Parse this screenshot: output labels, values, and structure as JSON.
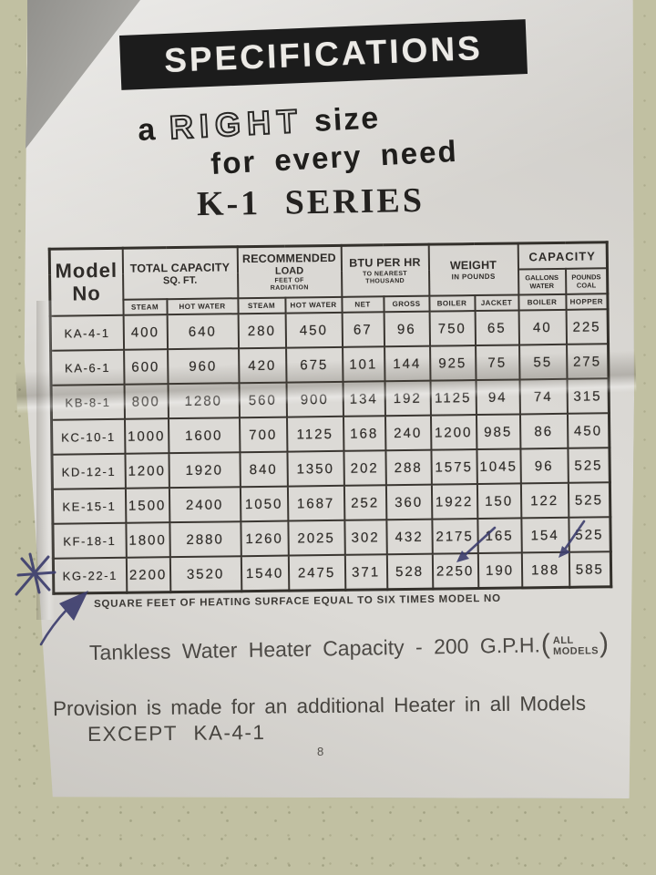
{
  "colors": {
    "background": "#c1c0a2",
    "paper": "#dcdad6",
    "banner_bg": "#1c1c1c",
    "banner_text": "#eceae6",
    "ink": "#2f2c29",
    "pen": "#3d3e6e"
  },
  "header": {
    "banner": "SPECIFICATIONS",
    "tagline_a": "a",
    "tagline_right": "RIGHT",
    "tagline_size": "size",
    "tagline_line2": "for every need",
    "series": "K-1 SERIES"
  },
  "table": {
    "model_col": {
      "line1": "Model",
      "line2": "No"
    },
    "groups": [
      {
        "title": "TOTAL CAPACITY",
        "title2": "SQ. FT.",
        "sub": ""
      },
      {
        "title": "RECOMMENDED",
        "title2": "LOAD",
        "sub": "FEET OF RADIATION"
      },
      {
        "title": "BTU PER HR",
        "title2": "",
        "sub": "TO NEAREST THOUSAND"
      },
      {
        "title": "WEIGHT",
        "title2": "",
        "sub": "IN POUNDS"
      },
      {
        "title": "CAPACITY",
        "subgroups": [
          "GALLONS WATER",
          "POUNDS COAL"
        ]
      }
    ],
    "subheaders": [
      "STEAM",
      "HOT WATER",
      "STEAM",
      "HOT WATER",
      "NET",
      "GROSS",
      "BOILER",
      "JACKET",
      "BOILER",
      "HOPPER"
    ],
    "rows": [
      {
        "model": "KA-4-1",
        "values": [
          "400",
          "640",
          "280",
          "450",
          "67",
          "96",
          "750",
          "65",
          "40",
          "225"
        ]
      },
      {
        "model": "KA-6-1",
        "values": [
          "600",
          "960",
          "420",
          "675",
          "101",
          "144",
          "925",
          "75",
          "55",
          "275"
        ]
      },
      {
        "model": "KB-8-1",
        "values": [
          "800",
          "1280",
          "560",
          "900",
          "134",
          "192",
          "1125",
          "94",
          "74",
          "315"
        ]
      },
      {
        "model": "KC-10-1",
        "values": [
          "1000",
          "1600",
          "700",
          "1125",
          "168",
          "240",
          "1200",
          "985",
          "86",
          "450"
        ]
      },
      {
        "model": "KD-12-1",
        "values": [
          "1200",
          "1920",
          "840",
          "1350",
          "202",
          "288",
          "1575",
          "1045",
          "96",
          "525"
        ]
      },
      {
        "model": "KE-15-1",
        "values": [
          "1500",
          "2400",
          "1050",
          "1687",
          "252",
          "360",
          "1922",
          "150",
          "122",
          "525"
        ]
      },
      {
        "model": "KF-18-1",
        "values": [
          "1800",
          "2880",
          "1260",
          "2025",
          "302",
          "432",
          "2175",
          "165",
          "154",
          "525"
        ]
      },
      {
        "model": "KG-22-1",
        "values": [
          "2200",
          "3520",
          "1540",
          "2475",
          "371",
          "528",
          "2250",
          "190",
          "188",
          "585"
        ]
      }
    ]
  },
  "notes": {
    "heating_surface": "SQUARE FEET OF HEATING SURFACE EQUAL TO SIX TIMES MODEL NO",
    "tankless_prefix": "Tankless Water Heater Capacity - 200 G.P.H.",
    "tankless_paren_open": "(",
    "tankless_stack_top": "ALL",
    "tankless_stack_bottom": "MODELS",
    "tankless_paren_close": ")",
    "provision_line1": "Provision is made for an additional Heater in all Models",
    "provision_line2": "EXCEPT KA-4-1",
    "page_number": "8"
  }
}
